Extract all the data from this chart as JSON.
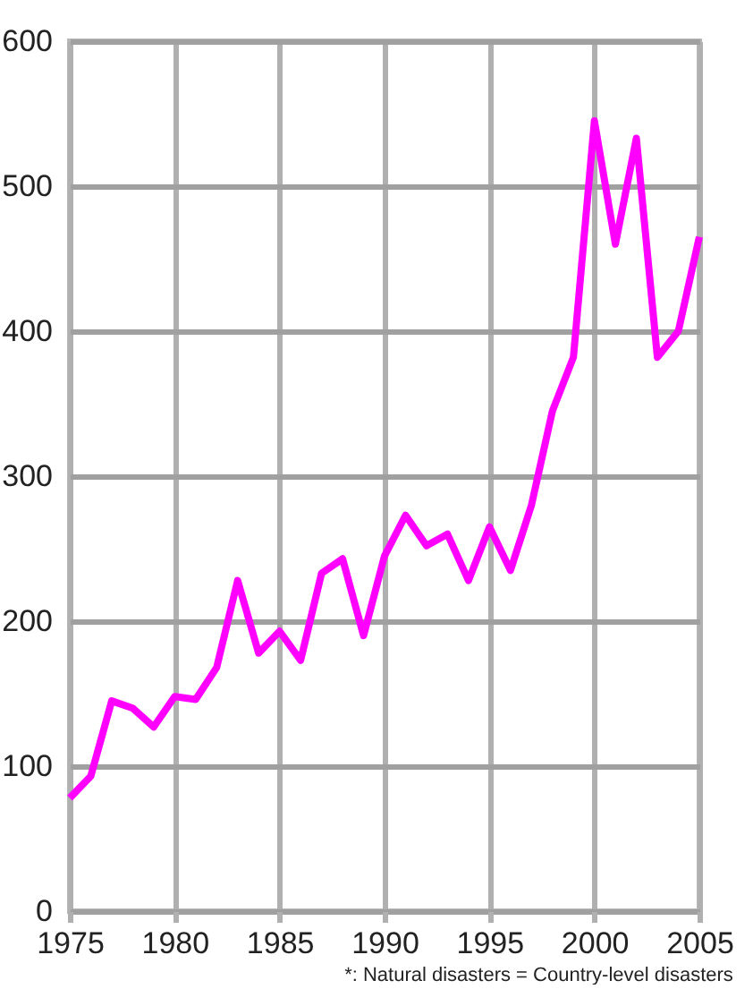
{
  "chart_data": {
    "type": "line",
    "x": [
      1975,
      1976,
      1977,
      1978,
      1979,
      1980,
      1981,
      1982,
      1983,
      1984,
      1985,
      1986,
      1987,
      1988,
      1989,
      1990,
      1991,
      1992,
      1993,
      1994,
      1995,
      1996,
      1997,
      1998,
      1999,
      2000,
      2001,
      2002,
      2003,
      2004,
      2005
    ],
    "series": [
      {
        "color": "#ff00ff",
        "values": [
          78,
          93,
          145,
          140,
          127,
          148,
          146,
          168,
          228,
          178,
          193,
          173,
          233,
          243,
          190,
          245,
          273,
          252,
          260,
          228,
          265,
          235,
          280,
          345,
          382,
          545,
          460,
          533,
          382,
          400,
          465
        ]
      }
    ],
    "xlim": [
      1975,
      2005
    ],
    "xticks": [
      1975,
      1980,
      1985,
      1990,
      1995,
      2000,
      2005
    ],
    "ylim": [
      0,
      600
    ],
    "yticks": [
      0,
      100,
      200,
      300,
      400,
      500,
      600
    ],
    "grid": true,
    "marker": "none",
    "line_style": "solid",
    "annotations": [
      "*: Natural disasters = Country-level disasters"
    ]
  }
}
